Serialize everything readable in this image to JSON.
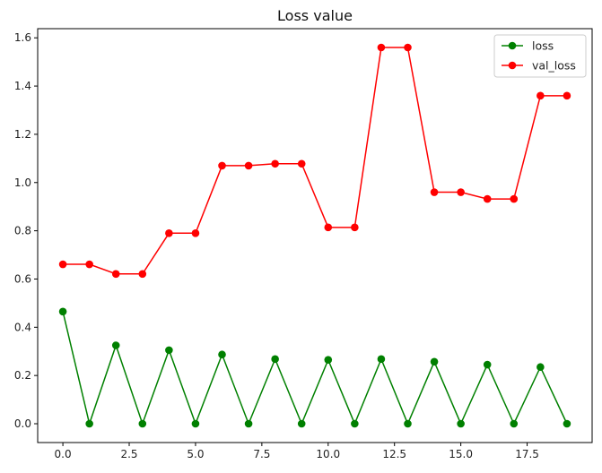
{
  "chart_data": {
    "type": "line",
    "title": "Loss value",
    "xlabel": "",
    "ylabel": "",
    "xlim": [
      -0.95,
      19.95
    ],
    "ylim": [
      -0.078,
      1.638
    ],
    "xticks": [
      0.0,
      2.5,
      5.0,
      7.5,
      10.0,
      12.5,
      15.0,
      17.5
    ],
    "xtick_labels": [
      "0.0",
      "2.5",
      "5.0",
      "7.5",
      "10.0",
      "12.5",
      "15.0",
      "17.5"
    ],
    "yticks": [
      0.0,
      0.2,
      0.4,
      0.6,
      0.8,
      1.0,
      1.2,
      1.4,
      1.6
    ],
    "ytick_labels": [
      "0.0",
      "0.2",
      "0.4",
      "0.6",
      "0.8",
      "1.0",
      "1.2",
      "1.4",
      "1.6"
    ],
    "grid": false,
    "legend_position": "top-right",
    "x": [
      0,
      1,
      2,
      3,
      4,
      5,
      6,
      7,
      8,
      9,
      10,
      11,
      12,
      13,
      14,
      15,
      16,
      17,
      18,
      19
    ],
    "series": [
      {
        "name": "loss",
        "color": "#008000",
        "values": [
          0.465,
          0.0,
          0.325,
          0.0,
          0.305,
          0.0,
          0.287,
          0.0,
          0.268,
          0.0,
          0.265,
          0.0,
          0.268,
          0.0,
          0.257,
          0.0,
          0.245,
          0.0,
          0.235,
          0.0
        ]
      },
      {
        "name": "val_loss",
        "color": "#ff0000",
        "values": [
          0.661,
          0.661,
          0.621,
          0.621,
          0.79,
          0.79,
          1.07,
          1.07,
          1.078,
          1.078,
          0.814,
          0.814,
          1.56,
          1.56,
          0.96,
          0.96,
          0.932,
          0.932,
          1.36,
          1.36
        ]
      }
    ]
  }
}
